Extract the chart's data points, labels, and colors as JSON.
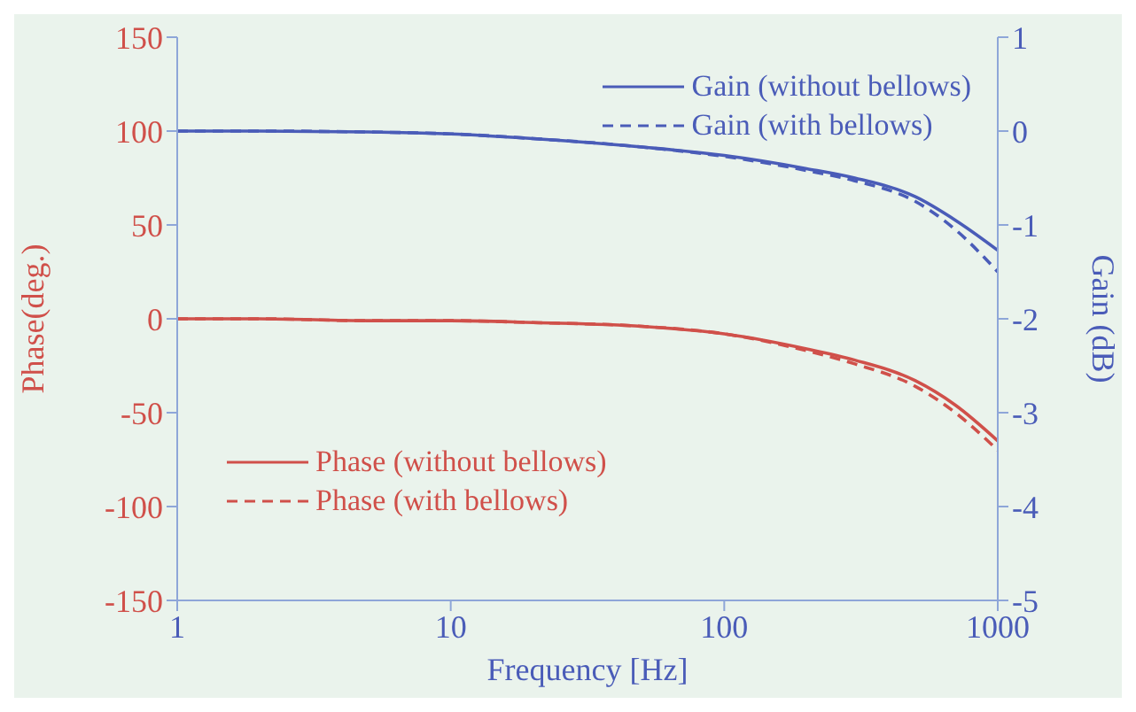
{
  "chart_data": {
    "type": "line",
    "xlabel": "Frequency [Hz]",
    "ylabel": "Phase(deg.)",
    "y2label": "Gain (dB)",
    "log": "x",
    "xlim": [
      1,
      1000
    ],
    "xticks": [
      1,
      10,
      100,
      1000
    ],
    "ylim": [
      -150,
      150
    ],
    "yticks": [
      -150,
      -100,
      -50,
      0,
      50,
      100,
      150
    ],
    "y2lim": [
      -5,
      1
    ],
    "y2ticks": [
      -5,
      -4,
      -3,
      -2,
      -1,
      0,
      1
    ],
    "grid": false,
    "legend": "top right",
    "marker": "none",
    "x": [
      1,
      2,
      5,
      10,
      20,
      50,
      100,
      200,
      300,
      500,
      700,
      1000
    ],
    "series": [
      {
        "name": "Gain (without bellows)",
        "color": "#4a5cb8",
        "axis": "y2",
        "line_style": "solid",
        "values": [
          0,
          0,
          -0.01,
          -0.03,
          -0.08,
          -0.17,
          -0.26,
          -0.4,
          -0.5,
          -0.7,
          -0.95,
          -1.27
        ]
      },
      {
        "name": "Gain (with bellows)",
        "color": "#4a5cb8",
        "axis": "y2",
        "line_style": "dashed",
        "values": [
          0,
          0,
          -0.01,
          -0.03,
          -0.08,
          -0.17,
          -0.27,
          -0.42,
          -0.53,
          -0.75,
          -1.05,
          -1.5
        ]
      },
      {
        "name": "Phase (without bellows)",
        "color": "#d0504a",
        "line_style": "solid",
        "values": [
          0,
          0,
          -1,
          -1,
          -2,
          -4,
          -8,
          -16,
          -22,
          -33,
          -46,
          -65
        ]
      },
      {
        "name": "Phase (with bellows)",
        "color": "#d0504a",
        "line_style": "dashed",
        "values": [
          0,
          0,
          -1,
          -1,
          -2,
          -4,
          -8,
          -17,
          -24,
          -36,
          -50,
          -70
        ]
      }
    ]
  }
}
